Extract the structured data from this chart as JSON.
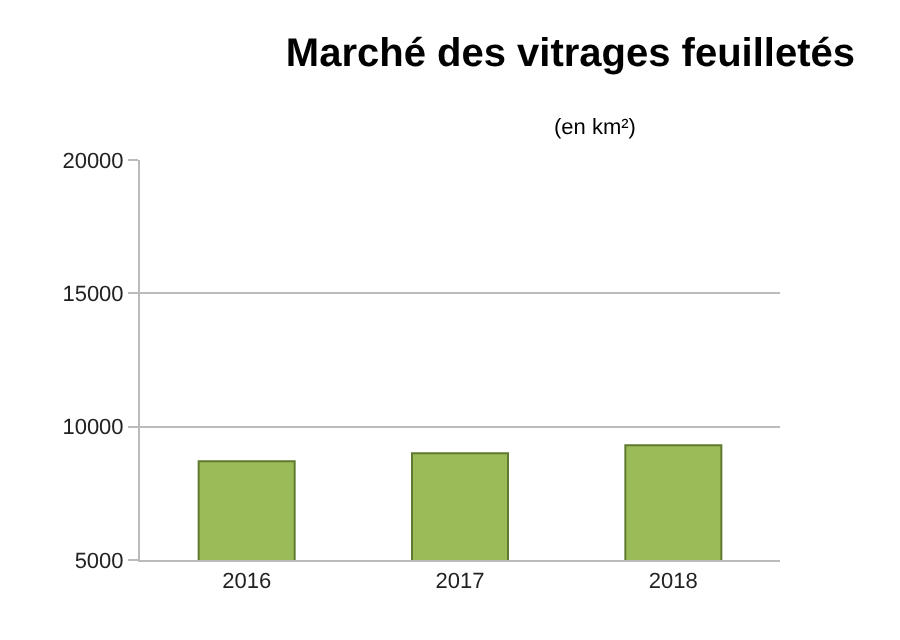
{
  "chart_data": {
    "type": "bar",
    "title": "Marché des vitrages feuilletés",
    "subtitle": "(en km²)",
    "categories": [
      "2016",
      "2017",
      "2018"
    ],
    "values": [
      8700,
      9000,
      9300
    ],
    "color": "#9bbb59",
    "ylim": [
      5000,
      20000
    ],
    "yticks": [
      5000,
      10000,
      15000,
      20000
    ],
    "grid": "y",
    "legend": false
  }
}
